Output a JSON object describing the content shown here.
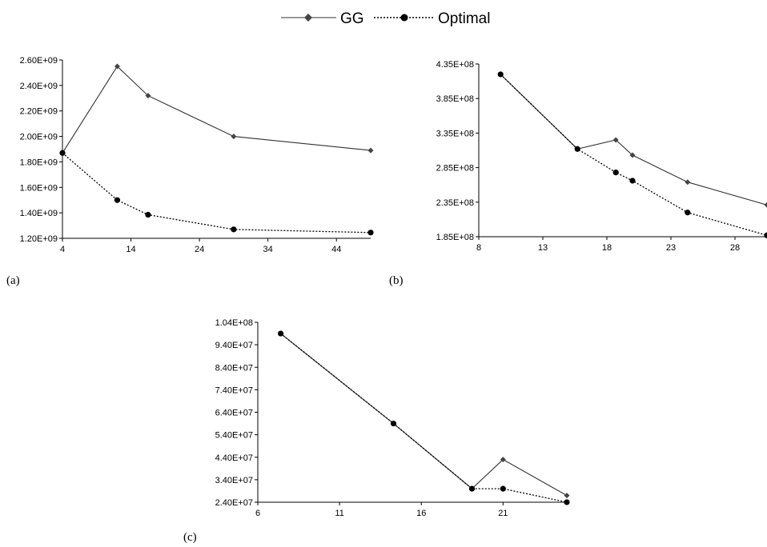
{
  "legend": {
    "gg_label": "GG",
    "optimal_label": "Optimal",
    "placement": "top-center"
  },
  "chart_data": [
    {
      "type": "line",
      "panel_label": "(a)",
      "x_ticks": [
        4,
        14,
        24,
        34,
        44
      ],
      "y_ticks": [
        "1.20E+09",
        "1.40E+09",
        "1.60E+09",
        "1.80E+09",
        "2.00E+09",
        "2.20E+09",
        "2.40E+09",
        "2.60E+09"
      ],
      "xlim": [
        4,
        49
      ],
      "ylim": [
        1200000000,
        2600000000
      ],
      "grid": false,
      "series": [
        {
          "name": "GG",
          "marker": "diamond",
          "line": "solid",
          "x": [
            4,
            12,
            16.5,
            29,
            49
          ],
          "y": [
            1870000000,
            2550000000,
            2320000000,
            2000000000,
            1890000000
          ]
        },
        {
          "name": "Optimal",
          "marker": "circle",
          "line": "dotted",
          "x": [
            4,
            12,
            16.5,
            29,
            49
          ],
          "y": [
            1870000000,
            1500000000,
            1385000000,
            1270000000,
            1245000000
          ]
        }
      ]
    },
    {
      "type": "line",
      "panel_label": "(b)",
      "x_ticks": [
        8,
        13,
        18,
        23,
        28
      ],
      "y_ticks": [
        "1.85E+08",
        "2.35E+08",
        "2.85E+08",
        "3.35E+08",
        "3.85E+08",
        "4.35E+08"
      ],
      "xlim": [
        8,
        30.5
      ],
      "ylim": [
        185000000,
        435000000
      ],
      "grid": false,
      "series": [
        {
          "name": "GG",
          "marker": "diamond",
          "line": "solid",
          "x": [
            9.7,
            15.7,
            18.7,
            20,
            24.3,
            30.5
          ],
          "y": [
            420000000,
            312000000,
            325000000,
            303000000,
            264000000,
            231000000
          ]
        },
        {
          "name": "Optimal",
          "marker": "circle",
          "line": "dotted",
          "x": [
            9.7,
            15.7,
            18.7,
            20,
            24.3,
            30.5
          ],
          "y": [
            420000000,
            312000000,
            278000000,
            266000000,
            220000000,
            187000000
          ]
        }
      ]
    },
    {
      "type": "line",
      "panel_label": "(c)",
      "x_ticks": [
        6,
        11,
        16,
        21
      ],
      "y_ticks": [
        "2.40E+07",
        "3.40E+07",
        "4.40E+07",
        "5.40E+07",
        "6.40E+07",
        "7.40E+07",
        "8.40E+07",
        "9.40E+07",
        "1.04E+08"
      ],
      "xlim": [
        6,
        25
      ],
      "ylim": [
        24000000,
        104000000
      ],
      "grid": false,
      "series": [
        {
          "name": "GG",
          "marker": "diamond",
          "line": "solid",
          "x": [
            7.4,
            14.3,
            19.1,
            21,
            24.9
          ],
          "y": [
            99000000,
            59000000,
            30000000,
            43000000,
            27000000
          ]
        },
        {
          "name": "Optimal",
          "marker": "circle",
          "line": "dotted",
          "x": [
            7.4,
            14.3,
            19.1,
            21,
            24.9
          ],
          "y": [
            99000000,
            59000000,
            30000000,
            30000000,
            24000000
          ]
        }
      ]
    }
  ]
}
